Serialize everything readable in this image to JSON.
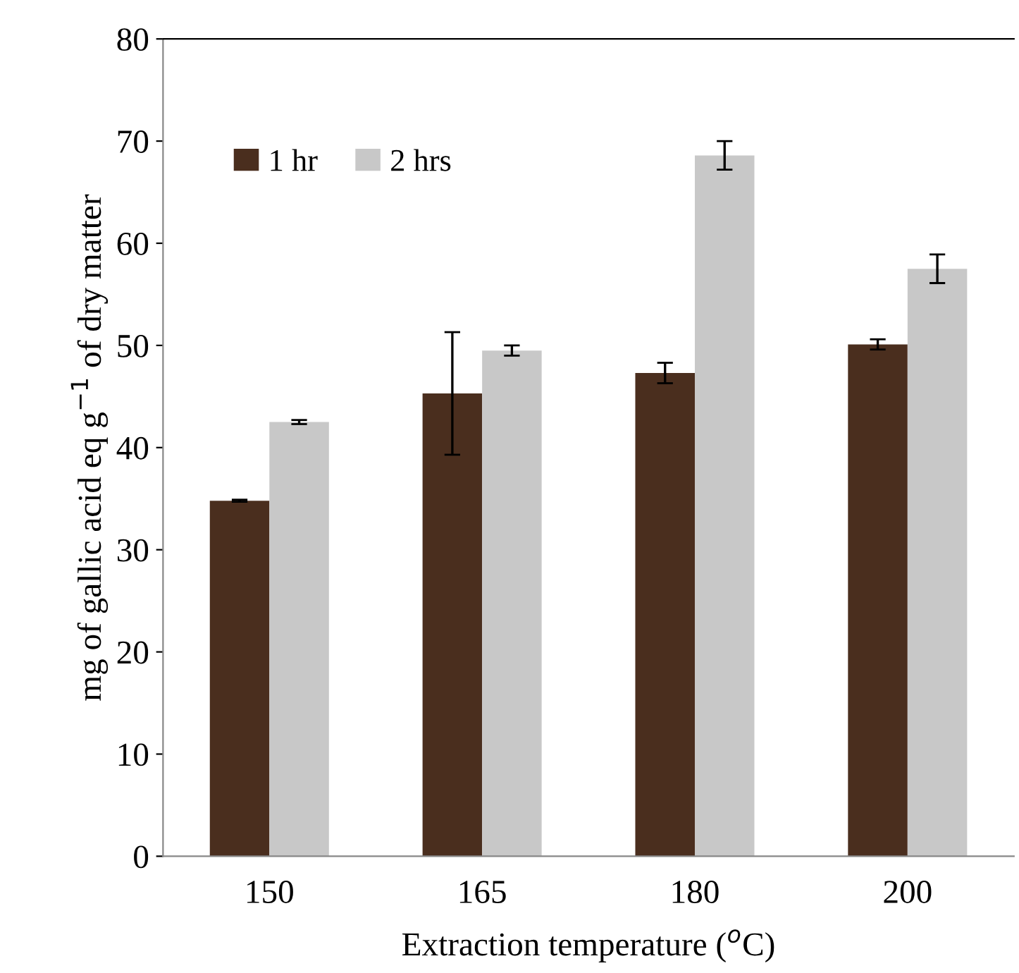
{
  "chart_data": {
    "type": "bar",
    "xlabel": "Extraction temperature ($^{o}$C)",
    "ylabel": "mg of gallic acid eq g$^{−1}$ of dry matter",
    "categories": [
      "150",
      "165",
      "180",
      "200"
    ],
    "series": [
      {
        "name": "1 hr",
        "color": "#4a2e1e",
        "values": [
          34.8,
          45.3,
          47.3,
          50.1
        ],
        "errors": [
          0.1,
          6,
          1,
          0.5
        ]
      },
      {
        "name": "2 hrs",
        "color": "#c8c8c8",
        "values": [
          42.5,
          49.5,
          68.6,
          57.5
        ],
        "errors": [
          0.2,
          0.5,
          1.4,
          1.4
        ]
      }
    ],
    "ylim": [
      0,
      80
    ],
    "yticks": [
      0,
      10,
      20,
      30,
      40,
      50,
      60,
      70,
      80
    ],
    "grid": false,
    "legend": "top left"
  }
}
